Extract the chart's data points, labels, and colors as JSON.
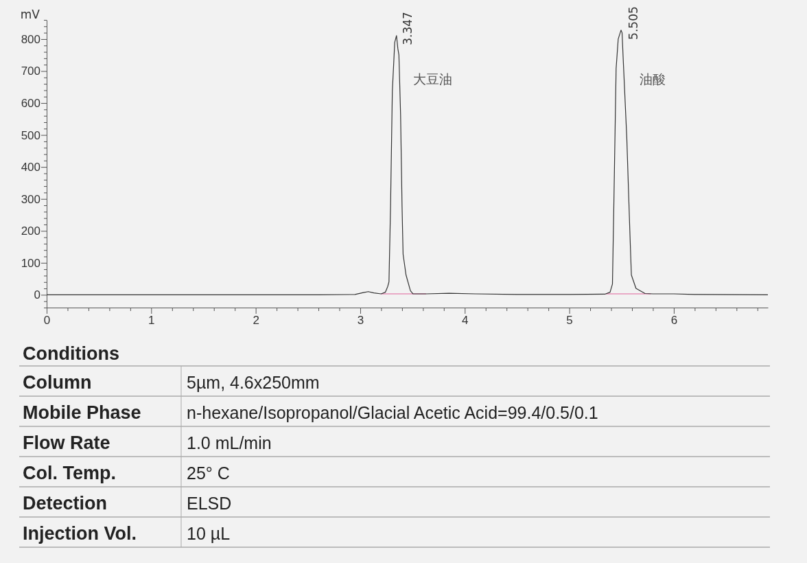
{
  "chart_data": [
    {
      "type": "line",
      "ylabel": "mV",
      "xlim": [
        0,
        6.9
      ],
      "ylim": [
        -40,
        860
      ],
      "xticks": [
        0,
        {
          "value": 0.2,
          "label": null
        },
        {
          "value": 0.4,
          "label": null
        },
        {
          "value": 0.6,
          "label": null
        },
        {
          "value": 0.8,
          "label": null
        },
        1,
        {
          "value": 1.2,
          "label": null
        },
        {
          "value": 1.4,
          "label": null
        },
        {
          "value": 1.6,
          "label": null
        },
        {
          "value": 1.8,
          "label": null
        },
        2,
        {
          "value": 2.2,
          "label": null
        },
        {
          "value": 2.4,
          "label": null
        },
        {
          "value": 2.6,
          "label": null
        },
        {
          "value": 2.8,
          "label": null
        },
        3,
        {
          "value": 3.2,
          "label": null
        },
        {
          "value": 3.4,
          "label": null
        },
        {
          "value": 3.6,
          "label": null
        },
        {
          "value": 3.8,
          "label": null
        },
        4,
        {
          "value": 4.2,
          "label": null
        },
        {
          "value": 4.4,
          "label": null
        },
        {
          "value": 4.6,
          "label": null
        },
        {
          "value": 4.8,
          "label": null
        },
        5,
        {
          "value": 5.2,
          "label": null
        },
        {
          "value": 5.4,
          "label": null
        },
        {
          "value": 5.6,
          "label": null
        },
        {
          "value": 5.8,
          "label": null
        },
        6,
        {
          "value": 6.2,
          "label": null
        },
        {
          "value": 6.4,
          "label": null
        },
        {
          "value": 6.6,
          "label": null
        },
        {
          "value": 6.8,
          "label": null
        }
      ],
      "yticks": [
        {
          "value": -40,
          "label": null
        },
        {
          "value": -20,
          "label": null
        },
        0,
        {
          "value": 20,
          "label": null
        },
        {
          "value": 40,
          "label": null
        },
        {
          "value": 60,
          "label": null
        },
        {
          "value": 80,
          "label": null
        },
        100,
        {
          "value": 120,
          "label": null
        },
        {
          "value": 140,
          "label": null
        },
        {
          "value": 160,
          "label": null
        },
        {
          "value": 180,
          "label": null
        },
        200,
        {
          "value": 220,
          "label": null
        },
        {
          "value": 240,
          "label": null
        },
        {
          "value": 260,
          "label": null
        },
        {
          "value": 280,
          "label": null
        },
        300,
        {
          "value": 320,
          "label": null
        },
        {
          "value": 340,
          "label": null
        },
        {
          "value": 360,
          "label": null
        },
        {
          "value": 380,
          "label": null
        },
        400,
        {
          "value": 420,
          "label": null
        },
        {
          "value": 440,
          "label": null
        },
        {
          "value": 460,
          "label": null
        },
        {
          "value": 480,
          "label": null
        },
        500,
        {
          "value": 520,
          "label": null
        },
        {
          "value": 540,
          "label": null
        },
        {
          "value": 560,
          "label": null
        },
        {
          "value": 580,
          "label": null
        },
        600,
        {
          "value": 620,
          "label": null
        },
        {
          "value": 640,
          "label": null
        },
        {
          "value": 660,
          "label": null
        },
        {
          "value": 680,
          "label": null
        },
        700,
        {
          "value": 720,
          "label": null
        },
        {
          "value": 740,
          "label": null
        },
        {
          "value": 760,
          "label": null
        },
        {
          "value": 780,
          "label": null
        },
        800,
        {
          "value": 820,
          "label": null
        },
        {
          "value": 840,
          "label": null
        },
        {
          "value": 860,
          "label": null
        }
      ],
      "series": [
        {
          "color": "#333333",
          "x": [
            0,
            2.6,
            2.95,
            3.03,
            3.077,
            3.13,
            3.2,
            3.24,
            3.263,
            3.275,
            3.29,
            3.307,
            3.33,
            3.347,
            3.36,
            3.37,
            3.386,
            3.4,
            3.41,
            3.438,
            3.48,
            3.504,
            3.63,
            3.85,
            4.1,
            4.5,
            5.0,
            5.34,
            5.39,
            5.413,
            5.426,
            5.448,
            5.468,
            5.495,
            5.505,
            5.513,
            5.55,
            5.579,
            5.594,
            5.638,
            5.725,
            5.8,
            6.0,
            6.2,
            6.9
          ],
          "values": [
            0,
            0,
            1,
            7,
            10,
            6,
            3,
            8,
            26,
            41,
            277,
            636,
            790,
            811,
            770,
            750,
            564,
            277,
            127,
            62,
            13,
            3,
            3,
            5,
            3,
            1,
            1,
            2,
            8,
            34,
            277,
            708,
            800,
            828,
            820,
            758,
            492,
            202,
            62,
            20,
            4,
            3,
            3,
            1,
            0
          ]
        },
        {
          "color": "#e0609a",
          "x": [
            3.2,
            3.63
          ],
          "values": [
            3,
            3
          ]
        },
        {
          "color": "#e0609a",
          "x": [
            5.35,
            5.78
          ],
          "values": [
            3,
            3
          ]
        }
      ],
      "annotations": [
        {
          "text": "3.347",
          "x": 3.347,
          "y": 811
        },
        {
          "text": "5.505",
          "x": 5.505,
          "y": 828
        },
        "大豆油",
        "油酸"
      ]
    },
    {
      "type": "other",
      "title": "Conditions",
      "annotations": [
        "Column",
        "5µm, 4.6x250mm",
        "Mobile Phase",
        "n-hexane/Isopropanol/Glacial Acetic Acid=99.4/0.5/0.1",
        "Flow Rate",
        "1.0 mL/min",
        "Col. Temp.",
        "25° C",
        "Detection",
        "ELSD",
        "Injection Vol.",
        "10 µL"
      ]
    }
  ]
}
